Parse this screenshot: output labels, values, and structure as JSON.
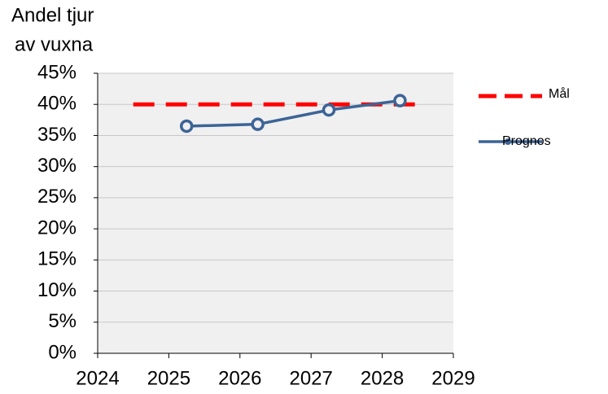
{
  "chart_data": {
    "type": "line",
    "ylabel": [
      "Andel tjur",
      "av vuxna"
    ],
    "series": [
      {
        "name": "Mål",
        "color": "#ff0000",
        "dashed": true,
        "markers": false,
        "x": [
          2024.5,
          2028.5
        ],
        "values": [
          40,
          40
        ]
      },
      {
        "name": "Prognos",
        "color": "#3c6496",
        "dashed": false,
        "markers": true,
        "x": [
          2025.25,
          2026.25,
          2027.25,
          2028.25
        ],
        "values": [
          36.5,
          36.8,
          39.1,
          40.6
        ]
      }
    ],
    "xlim": [
      2024,
      2029
    ],
    "xticks": [
      2024,
      2025,
      2026,
      2027,
      2028,
      2029
    ],
    "ylim": [
      0,
      45
    ],
    "yticks": [
      {
        "value": 0,
        "label": "0%"
      },
      {
        "value": 5,
        "label": "5%"
      },
      {
        "value": 10,
        "label": "10%"
      },
      {
        "value": 15,
        "label": "15%"
      },
      {
        "value": 20,
        "label": "20%"
      },
      {
        "value": 25,
        "label": "25%"
      },
      {
        "value": 30,
        "label": "30%"
      },
      {
        "value": 35,
        "label": "35%"
      },
      {
        "value": 40,
        "label": "40%"
      },
      {
        "value": 45,
        "label": "45%"
      }
    ],
    "grid": true,
    "legend": "right"
  }
}
